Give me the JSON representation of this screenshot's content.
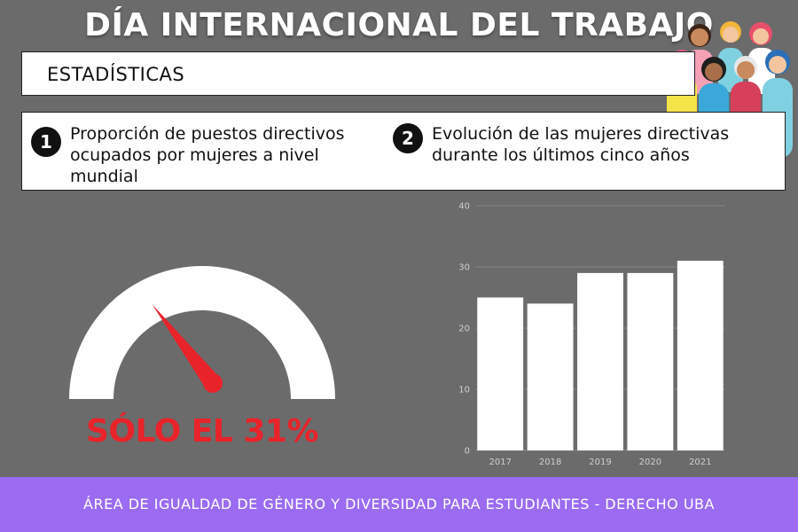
{
  "header": {
    "title": "DÍA INTERNACIONAL DEL TRABAJO"
  },
  "section": {
    "label": "ESTADÍSTICAS"
  },
  "items": [
    {
      "number": "1",
      "text_lines": [
        "Proporción de puestos directivos",
        "ocupados por mujeres a nivel",
        "mundial"
      ]
    },
    {
      "number": "2",
      "text_lines": [
        "Evolución de las mujeres directivas",
        "durante los últimos cinco años"
      ]
    }
  ],
  "gauge": {
    "value_percent": 31,
    "label": "SÓLO EL 31%"
  },
  "footer": {
    "text": "ÁREA DE IGUALDAD DE GÉNERO Y DIVERSIDAD PARA ESTUDIANTES -  DERECHO UBA"
  },
  "illustration": {
    "icon": "group-of-women-icon"
  },
  "colors": {
    "background": "#6b6b6b",
    "accent_red": "#e8232a",
    "footer": "#9b6bf2",
    "bars": "#ffffff"
  },
  "chart_data": [
    {
      "type": "gauge",
      "value": 31,
      "min": 0,
      "max": 100,
      "label": "SÓLO EL 31%"
    },
    {
      "type": "bar",
      "categories": [
        "2017",
        "2018",
        "2019",
        "2020",
        "2021"
      ],
      "values": [
        25,
        24,
        29,
        29,
        31
      ],
      "ylim": [
        0,
        40
      ],
      "yticks": [
        0,
        10,
        20,
        30,
        40
      ],
      "grid": true,
      "legend": "none"
    }
  ]
}
